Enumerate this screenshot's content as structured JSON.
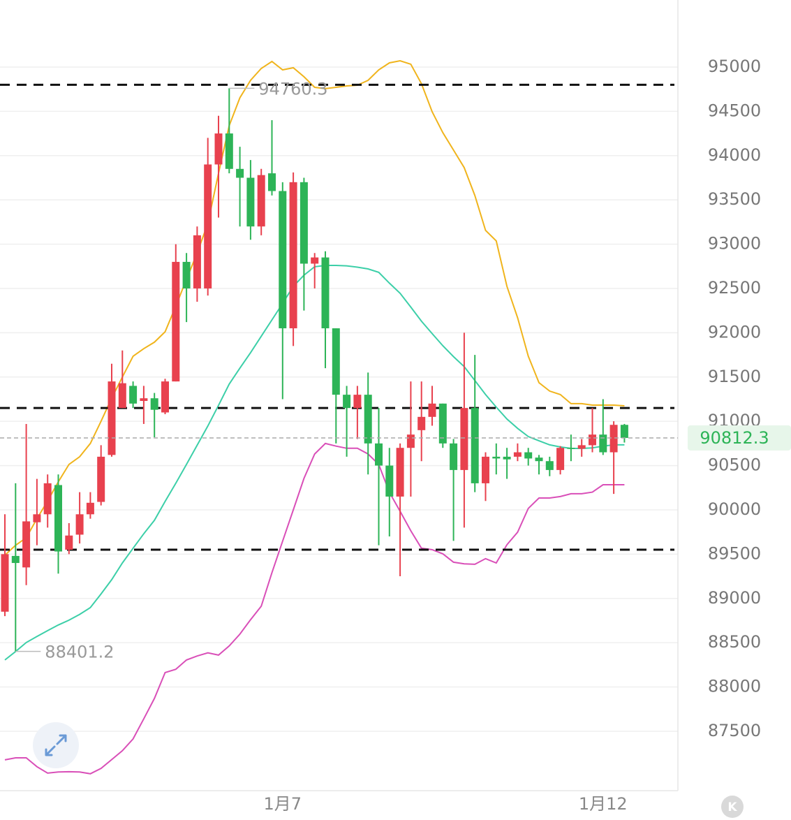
{
  "chart_data": {
    "type": "candlestick",
    "categories": [
      null,
      null,
      null,
      null,
      null,
      null,
      null,
      null,
      null,
      null,
      null,
      null,
      null,
      null,
      null,
      null,
      null,
      null,
      null,
      null,
      null,
      null,
      null,
      null,
      null,
      null,
      "1月7",
      null,
      null,
      null,
      null,
      null,
      null,
      null,
      null,
      null,
      null,
      null,
      null,
      null,
      null,
      null,
      null,
      null,
      null,
      null,
      null,
      null,
      null,
      null,
      null,
      null,
      null,
      null,
      null,
      null,
      "1月12",
      null,
      null
    ],
    "open": [
      88850,
      89480,
      89350,
      89860,
      89950,
      90280,
      89550,
      89720,
      89950,
      90090,
      90620,
      91150,
      91400,
      91230,
      91260,
      91100,
      91450,
      92800,
      92500,
      92500,
      93900,
      94250,
      93850,
      93750,
      93200,
      93800,
      93600,
      92050,
      93700,
      92780,
      92850,
      92050,
      91300,
      91150,
      91300,
      90750,
      90500,
      90150,
      90700,
      90900,
      91050,
      91200,
      90750,
      90450,
      91150,
      90300,
      90600,
      90600,
      90600,
      90650,
      90590,
      90550,
      90450,
      90700,
      90690,
      90730,
      90850,
      90650,
      90960
    ],
    "high": [
      89950,
      90300,
      90970,
      90350,
      90400,
      90400,
      89850,
      90200,
      90200,
      90730,
      91650,
      91800,
      91450,
      91400,
      91320,
      91480,
      93000,
      92900,
      93200,
      94200,
      94450,
      94760.3,
      94100,
      93950,
      93850,
      94400,
      93700,
      93810,
      93750,
      92900,
      92920,
      92050,
      91400,
      91400,
      91550,
      91150,
      90700,
      90750,
      91450,
      91450,
      91400,
      91200,
      90800,
      92000,
      91750,
      90650,
      90750,
      90700,
      90750,
      90700,
      90620,
      90600,
      90720,
      90850,
      90800,
      91150,
      91250,
      91000,
      90970
    ],
    "low": [
      88800,
      88401.2,
      89150,
      89600,
      89800,
      89280,
      89500,
      89620,
      89900,
      90050,
      90600,
      91150,
      91150,
      90970,
      90820,
      91080,
      91450,
      92120,
      92350,
      92420,
      93300,
      93800,
      93200,
      93050,
      93100,
      93550,
      91250,
      91850,
      92250,
      92500,
      91600,
      90750,
      90600,
      90800,
      90400,
      89600,
      89700,
      89250,
      90150,
      90550,
      90950,
      90700,
      89650,
      89800,
      90200,
      90100,
      90400,
      90350,
      90550,
      90500,
      90400,
      90380,
      90400,
      90550,
      90600,
      90650,
      90620,
      90180,
      90760
    ],
    "close": [
      89500,
      89400,
      89870,
      89950,
      90300,
      89530,
      89710,
      89950,
      90080,
      90600,
      91450,
      91430,
      91200,
      91260,
      91130,
      91450,
      92800,
      92500,
      93100,
      93900,
      94250,
      93850,
      93750,
      93200,
      93780,
      93600,
      92050,
      93700,
      92780,
      92850,
      92050,
      91300,
      91150,
      91300,
      90750,
      90500,
      90150,
      90700,
      90850,
      91050,
      91200,
      90750,
      90450,
      91150,
      90300,
      90600,
      90580,
      90570,
      90650,
      90580,
      90550,
      90450,
      90700,
      90690,
      90730,
      90850,
      90650,
      90960,
      90812.3
    ],
    "up_color": "#e8414e",
    "down_color": "#2db457",
    "bands": [
      {
        "color": "#f0b41c",
        "values": [
          89488,
          89600,
          89685,
          89900,
          90100,
          90316,
          90513,
          90600,
          90750,
          91000,
          91262,
          91500,
          91735,
          91820,
          91893,
          92011,
          92300,
          92603,
          92900,
          93234,
          93800,
          94338,
          94653,
          94850,
          94984,
          95063,
          94968,
          94992,
          94890,
          94771,
          94756,
          94771,
          94787,
          94795,
          94850,
          94968,
          95047,
          95071,
          95032,
          94811,
          94495,
          94259,
          94062,
          93864,
          93549,
          93155,
          93037,
          92524,
          92169,
          91735,
          91436,
          91341,
          91302,
          91199,
          91199,
          91183,
          91183,
          91183,
          91175
        ]
      },
      {
        "color": "#3ccfa8",
        "values": [
          88305,
          88400,
          88502,
          88570,
          88636,
          88700,
          88754,
          88820,
          88896,
          89050,
          89212,
          89400,
          89567,
          89730,
          89882,
          90095,
          90300,
          90513,
          90730,
          90947,
          91180,
          91420,
          91600,
          91775,
          91960,
          92145,
          92330,
          92524,
          92650,
          92745,
          92760,
          92760,
          92755,
          92740,
          92721,
          92682,
          92560,
          92445,
          92290,
          92130,
          91990,
          91853,
          91730,
          91617,
          91460,
          91302,
          91160,
          91026,
          90920,
          90828,
          90780,
          90734,
          90710,
          90694,
          90694,
          90700,
          90720,
          90734,
          90734
        ]
      },
      {
        "color": "#d94fb8",
        "values": [
          87177,
          87200,
          87200,
          87100,
          87027,
          87040,
          87043,
          87040,
          87020,
          87080,
          87180,
          87280,
          87414,
          87640,
          87871,
          88163,
          88200,
          88305,
          88350,
          88385,
          88360,
          88463,
          88597,
          88760,
          88912,
          89291,
          89646,
          90000,
          90355,
          90631,
          90750,
          90720,
          90695,
          90695,
          90631,
          90513,
          90197,
          89984,
          89764,
          89567,
          89550,
          89504,
          89409,
          89390,
          89385,
          89449,
          89400,
          89606,
          89748,
          90016,
          90134,
          90134,
          90150,
          90182,
          90182,
          90200,
          90284,
          90284,
          90284
        ]
      }
    ],
    "levels": [
      94800,
      91150,
      89550
    ],
    "level_color": "#111111",
    "ylim": [
      86845,
      95757
    ],
    "yticks": [
      87500,
      88000,
      88500,
      89000,
      89500,
      90000,
      90500,
      91000,
      91500,
      92000,
      92500,
      93000,
      93500,
      94000,
      94500,
      95000
    ],
    "grid": true
  },
  "badge": "K"
}
